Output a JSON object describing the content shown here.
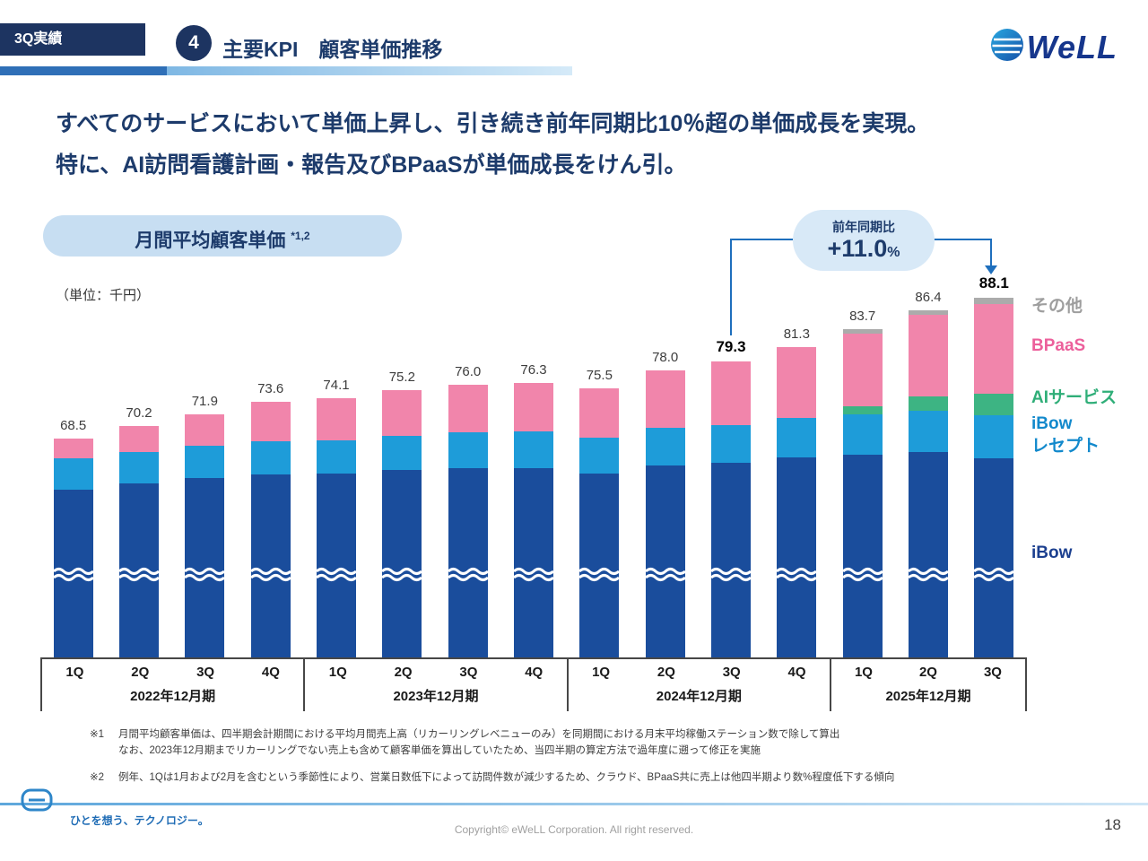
{
  "header": {
    "badge": "3Q実績",
    "section_number": "4",
    "title": "主要KPI　顧客単価推移",
    "logo_text": "WeLL"
  },
  "message": {
    "line1": "すべてのサービスにおいて単価上昇し、引き続き前年同期比10％超の単価成長を実現。",
    "line2": "特に、AI訪問看護計画・報告及びBPaaSが単価成長をけん引。"
  },
  "chart_header": {
    "pill_label": "月間平均顧客単価",
    "pill_note": "*1,2",
    "unit_note": "（単位：千円）"
  },
  "callout": {
    "label": "前年同期比",
    "value": "+11.0",
    "percent": "%"
  },
  "chart_data": {
    "type": "bar",
    "stacked": true,
    "title": "月間平均顧客単価",
    "unit": "千円",
    "categories": [
      "1Q",
      "2Q",
      "3Q",
      "4Q",
      "1Q",
      "2Q",
      "3Q",
      "4Q",
      "1Q",
      "2Q",
      "3Q",
      "4Q",
      "1Q",
      "2Q",
      "3Q"
    ],
    "group_labels": [
      "2022年12月期",
      "2023年12月期",
      "2024年12月期",
      "2025年12月期"
    ],
    "group_sizes": [
      4,
      4,
      4,
      3
    ],
    "totals": [
      68.5,
      70.2,
      71.9,
      73.6,
      74.1,
      75.2,
      76.0,
      76.3,
      75.5,
      78.0,
      79.3,
      81.3,
      83.7,
      86.4,
      88.1
    ],
    "emphasized_indices": [
      10,
      14
    ],
    "yoy_change_pct": "+11.0%",
    "axis_break": true,
    "series": [
      {
        "name": "iBow",
        "color": "#1a4d9c",
        "values": [
          61.4,
          62.2,
          63.0,
          63.5,
          63.6,
          64.1,
          64.4,
          64.4,
          63.6,
          64.8,
          65.1,
          65.9,
          66.3,
          66.6,
          65.8
        ]
      },
      {
        "name": "iBowレセプト",
        "color": "#1e9cd9",
        "values": [
          4.3,
          4.4,
          4.5,
          4.6,
          4.7,
          4.8,
          5.0,
          5.1,
          5.0,
          5.2,
          5.3,
          5.5,
          5.6,
          5.8,
          5.9
        ]
      },
      {
        "name": "AIサービス",
        "color": "#3db483",
        "values": [
          0,
          0,
          0,
          0,
          0,
          0,
          0,
          0,
          0,
          0,
          0,
          0,
          1.1,
          2.0,
          3.0
        ]
      },
      {
        "name": "BPaaS",
        "color": "#f185ab",
        "values": [
          2.8,
          3.6,
          4.4,
          5.5,
          5.8,
          6.3,
          6.6,
          6.8,
          6.9,
          8.0,
          8.9,
          9.9,
          10.1,
          11.3,
          12.6
        ]
      },
      {
        "name": "その他",
        "color": "#ababab",
        "values": [
          0,
          0,
          0,
          0,
          0,
          0,
          0,
          0,
          0,
          0,
          0,
          0,
          0.6,
          0.7,
          0.8
        ]
      }
    ]
  },
  "legend": {
    "other": "その他",
    "bpaas": "BPaaS",
    "ai": "AIサービス",
    "receipt_line1": "iBow",
    "receipt_line2": "レセプト",
    "ibow": "iBow"
  },
  "footnotes": {
    "n1_label": "※1",
    "n1_line1": "月間平均顧客単価は、四半期会計期間における平均月間売上高（リカーリングレベニューのみ）を同期間における月末平均稼働ステーション数で除して算出",
    "n1_line2": "なお、2023年12月期までリカーリングでない売上も含めて顧客単価を算出していたため、当四半期の算定方法で過年度に遡って修正を実施",
    "n2_label": "※2",
    "n2_line1": "例年、1Qは1月および2月を含むという季節性により、営業日数低下によって訪問件数が減少するため、クラウド、BPaaS共に売上は他四半期より数%程度低下する傾向"
  },
  "footer": {
    "tagline": "ひとを想う、テクノロジー。",
    "copyright": "Copyright© eWeLL Corporation. All right reserved.",
    "page_number": "18"
  }
}
